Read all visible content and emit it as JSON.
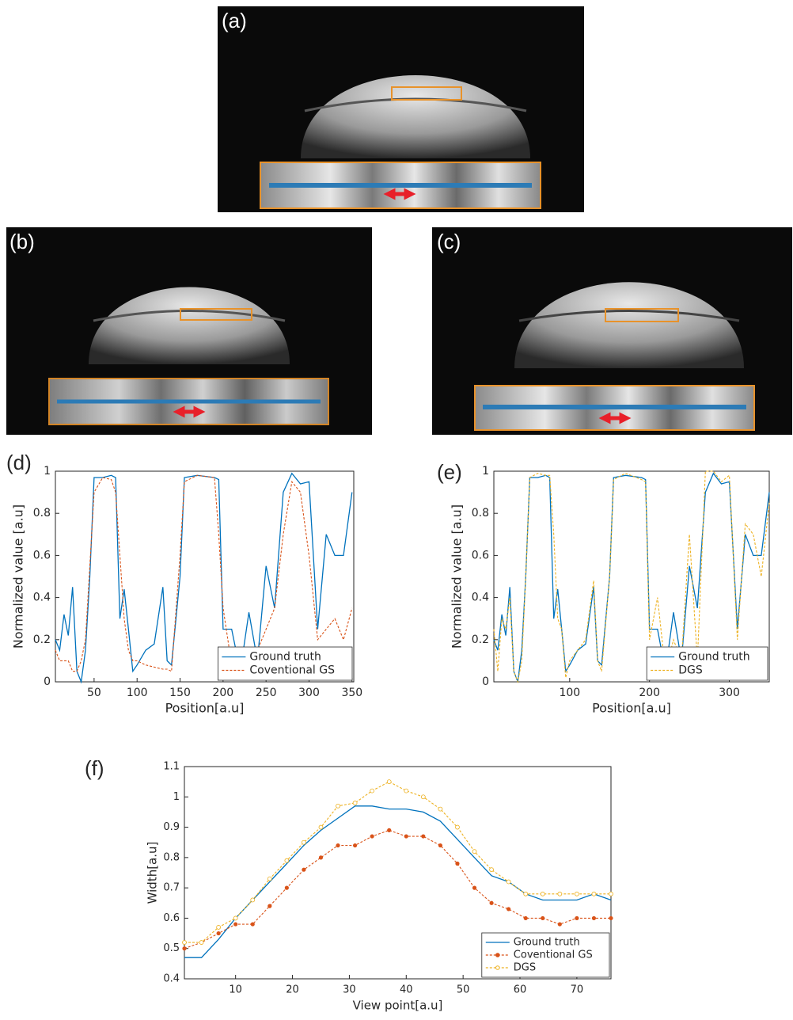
{
  "images": [
    {
      "label": "(a)"
    },
    {
      "label": "(b)"
    },
    {
      "label": "(c)"
    }
  ],
  "chart_data": [
    {
      "type": "line",
      "label": "(d)",
      "x_label": "Position[a.u]",
      "y_label": "Normalized value [a.u]",
      "xlim": [
        5,
        352
      ],
      "xticks": [
        50,
        100,
        150,
        200,
        250,
        300,
        350
      ],
      "ylim": [
        0,
        1
      ],
      "yticks": [
        0,
        0.2,
        0.4,
        0.6,
        0.8,
        1
      ],
      "legend": "lower right",
      "x": [
        5,
        10,
        15,
        20,
        25,
        30,
        35,
        40,
        45,
        50,
        60,
        70,
        75,
        80,
        85,
        90,
        95,
        100,
        110,
        120,
        130,
        135,
        140,
        150,
        155,
        170,
        190,
        195,
        200,
        210,
        220,
        230,
        240,
        250,
        260,
        270,
        280,
        290,
        300,
        310,
        320,
        330,
        340,
        350
      ],
      "series": [
        {
          "name": "Ground truth",
          "color": "#0072bd",
          "line_style": "solid",
          "values": [
            0.2,
            0.15,
            0.32,
            0.22,
            0.45,
            0.05,
            0,
            0.15,
            0.5,
            0.97,
            0.97,
            0.98,
            0.97,
            0.3,
            0.44,
            0.25,
            0.05,
            0.08,
            0.15,
            0.18,
            0.45,
            0.1,
            0.08,
            0.5,
            0.97,
            0.98,
            0.97,
            0.96,
            0.25,
            0.25,
            0.05,
            0.33,
            0.1,
            0.55,
            0.35,
            0.9,
            0.99,
            0.94,
            0.95,
            0.25,
            0.7,
            0.6,
            0.6,
            0.9
          ]
        },
        {
          "name": "Coventional GS",
          "color": "#d95319",
          "line_style": "dashed",
          "values": [
            0.15,
            0.1,
            0.1,
            0.1,
            0.05,
            0.05,
            0.1,
            0.2,
            0.55,
            0.9,
            0.97,
            0.96,
            0.9,
            0.6,
            0.3,
            0.15,
            0.1,
            0.1,
            0.08,
            0.07,
            0.06,
            0.06,
            0.05,
            0.6,
            0.95,
            0.98,
            0.97,
            0.7,
            0.35,
            0.08,
            0.05,
            0.06,
            0.15,
            0.25,
            0.35,
            0.7,
            0.95,
            0.9,
            0.6,
            0.2,
            0.25,
            0.3,
            0.2,
            0.35
          ]
        }
      ]
    },
    {
      "type": "line",
      "label": "(e)",
      "x_label": "Position[a.u]",
      "y_label": "Normalized value [a.u]",
      "xlim": [
        5,
        350
      ],
      "xticks": [
        100,
        200,
        300
      ],
      "ylim": [
        0,
        1
      ],
      "yticks": [
        0,
        0.2,
        0.4,
        0.6,
        0.8,
        1
      ],
      "legend": "lower right",
      "x": [
        5,
        10,
        15,
        20,
        25,
        30,
        35,
        40,
        45,
        50,
        60,
        70,
        75,
        80,
        85,
        90,
        95,
        100,
        110,
        120,
        130,
        135,
        140,
        150,
        155,
        170,
        190,
        195,
        200,
        210,
        220,
        230,
        240,
        250,
        260,
        270,
        280,
        290,
        300,
        310,
        320,
        330,
        340,
        350
      ],
      "series": [
        {
          "name": "Ground truth",
          "color": "#0072bd",
          "line_style": "solid",
          "values": [
            0.2,
            0.15,
            0.32,
            0.22,
            0.45,
            0.05,
            0,
            0.15,
            0.5,
            0.97,
            0.97,
            0.98,
            0.97,
            0.3,
            0.44,
            0.25,
            0.05,
            0.08,
            0.15,
            0.18,
            0.45,
            0.1,
            0.08,
            0.5,
            0.97,
            0.98,
            0.97,
            0.96,
            0.25,
            0.25,
            0.05,
            0.33,
            0.1,
            0.55,
            0.35,
            0.9,
            0.99,
            0.94,
            0.95,
            0.25,
            0.7,
            0.6,
            0.6,
            0.9
          ]
        },
        {
          "name": "DGS",
          "color": "#edb120",
          "line_style": "dashed",
          "values": [
            0.25,
            0.05,
            0.3,
            0.25,
            0.4,
            0.05,
            0,
            0.1,
            0.5,
            0.97,
            0.99,
            0.98,
            0.98,
            0.7,
            0.3,
            0.25,
            0.02,
            0.1,
            0.15,
            0.2,
            0.48,
            0.1,
            0.05,
            0.5,
            0.96,
            0.99,
            0.96,
            0.95,
            0.2,
            0.4,
            0.05,
            0.2,
            0.1,
            0.7,
            0.1,
            1,
            1,
            0.95,
            0.98,
            0.2,
            0.75,
            0.7,
            0.5,
            0.85
          ]
        }
      ]
    },
    {
      "type": "line",
      "label": "(f)",
      "x_label": "View point[a.u]",
      "y_label": "Width[a.u]",
      "xlim": [
        1,
        76
      ],
      "xticks": [
        10,
        20,
        30,
        40,
        50,
        60,
        70
      ],
      "ylim": [
        0.4,
        1.1
      ],
      "yticks": [
        0.4,
        0.5,
        0.6,
        0.7,
        0.8,
        0.9,
        1,
        1.1
      ],
      "legend": "lower right",
      "x": [
        1,
        4,
        7,
        10,
        13,
        16,
        19,
        22,
        25,
        28,
        31,
        34,
        37,
        40,
        43,
        46,
        49,
        52,
        55,
        58,
        61,
        64,
        67,
        70,
        73,
        76
      ],
      "series": [
        {
          "name": "Ground truth",
          "color": "#0072bd",
          "line_style": "solid",
          "values": [
            0.47,
            0.47,
            0.53,
            0.6,
            0.66,
            0.72,
            0.78,
            0.84,
            0.89,
            0.93,
            0.97,
            0.97,
            0.96,
            0.96,
            0.95,
            0.92,
            0.86,
            0.8,
            0.74,
            0.72,
            0.68,
            0.66,
            0.66,
            0.66,
            0.68,
            0.66
          ]
        },
        {
          "name": "Coventional GS",
          "color": "#d95319",
          "line_style": "dashed",
          "marker": "dot",
          "values": [
            0.5,
            0.52,
            0.55,
            0.58,
            0.58,
            0.64,
            0.7,
            0.76,
            0.8,
            0.84,
            0.84,
            0.87,
            0.89,
            0.87,
            0.87,
            0.84,
            0.78,
            0.7,
            0.65,
            0.63,
            0.6,
            0.6,
            0.58,
            0.6,
            0.6,
            0.6
          ]
        },
        {
          "name": "DGS",
          "color": "#edb120",
          "line_style": "dashed",
          "marker": "circle",
          "values": [
            0.52,
            0.52,
            0.57,
            0.6,
            0.66,
            0.73,
            0.79,
            0.85,
            0.9,
            0.97,
            0.98,
            1.02,
            1.05,
            1.02,
            1,
            0.96,
            0.9,
            0.82,
            0.76,
            0.72,
            0.68,
            0.68,
            0.68,
            0.68,
            0.68,
            0.68
          ]
        }
      ]
    }
  ]
}
